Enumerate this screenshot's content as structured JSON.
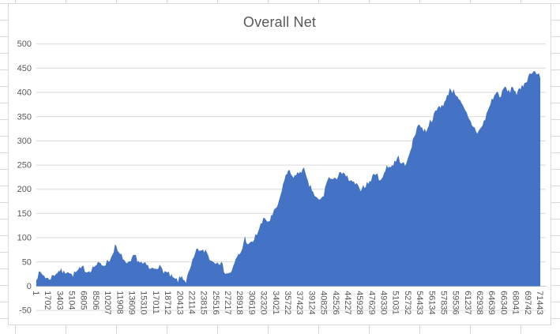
{
  "sheet": {
    "background": "#ffffff",
    "gridline_color": "#d9d9d9"
  },
  "chart": {
    "background": "#ffffff",
    "border_color": "#d9d9d9"
  },
  "chart_data": {
    "type": "area",
    "title": "Overall Net",
    "title_color": "#595959",
    "fill_color": "#4472c4",
    "axis_label_color": "#595959",
    "gridline_color": "#d9d9d9",
    "axis_line_color": "#bfbfbf",
    "legend": "none",
    "grid": "horizontal",
    "ylim": [
      -50,
      500
    ],
    "yticks": [
      500,
      450,
      400,
      350,
      300,
      250,
      200,
      150,
      100,
      50,
      0,
      -50
    ],
    "xticks": [
      1,
      1702,
      3403,
      5104,
      6805,
      8506,
      10207,
      11908,
      13609,
      15310,
      17011,
      18712,
      20413,
      22114,
      23815,
      25516,
      27217,
      28918,
      30619,
      32320,
      34021,
      35722,
      37423,
      39124,
      40825,
      42526,
      44227,
      45928,
      47629,
      49330,
      51031,
      52732,
      54433,
      56134,
      57835,
      59536,
      61237,
      62938,
      64639,
      66340,
      68041,
      69742,
      71443
    ],
    "x_range": [
      1,
      71443
    ],
    "values": [
      18,
      28,
      22,
      14,
      20,
      27,
      33,
      28,
      33,
      22,
      28,
      34,
      38,
      30,
      36,
      43,
      46,
      44,
      50,
      58,
      84,
      66,
      60,
      42,
      50,
      64,
      52,
      46,
      43,
      34,
      38,
      42,
      34,
      28,
      22,
      14,
      12,
      20,
      10,
      32,
      58,
      78,
      70,
      75,
      58,
      50,
      53,
      46,
      29,
      25,
      38,
      60,
      70,
      100,
      84,
      92,
      108,
      126,
      140,
      133,
      146,
      162,
      182,
      222,
      238,
      230,
      226,
      239,
      240,
      212,
      200,
      182,
      176,
      188,
      224,
      221,
      218,
      238,
      230,
      224,
      214,
      212,
      200,
      206,
      211,
      219,
      235,
      224,
      222,
      250,
      246,
      256,
      266,
      252,
      250,
      284,
      306,
      338,
      324,
      322,
      340,
      352,
      368,
      374,
      382,
      408,
      402,
      394,
      374,
      360,
      342,
      330,
      318,
      326,
      346,
      370,
      390,
      400,
      392,
      412,
      400,
      412,
      398,
      406,
      420,
      432,
      446,
      440,
      432
    ],
    "noise_amplitude": 6,
    "noise_seed": 7
  }
}
